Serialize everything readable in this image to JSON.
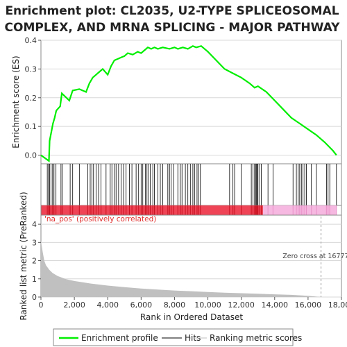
{
  "chart_data": {
    "type": "line",
    "title_lines": [
      "Enrichment plot: CL2035, U2-TYPE SPLICEOSOMAL",
      "COMPLEX, AND MRNA SPLICING - MAJOR PATHWAY"
    ],
    "es_panel": {
      "ylabel": "Enrichment score (ES)",
      "ylim": [
        -0.03,
        0.4
      ],
      "yticks": [
        "0.0",
        "0.1",
        "0.2",
        "0.3",
        "0.4"
      ],
      "ytick_values": [
        0.0,
        0.1,
        0.2,
        0.3,
        0.4
      ],
      "series": [
        {
          "name": "Enrichment profile",
          "color": "#00ee00",
          "x": [
            0,
            480,
            520,
            620,
            720,
            820,
            920,
            1150,
            1250,
            1700,
            1900,
            2300,
            2700,
            2900,
            3100,
            3300,
            3500,
            3700,
            4000,
            4200,
            4400,
            4600,
            4800,
            5000,
            5200,
            5500,
            5800,
            6000,
            6200,
            6400,
            6600,
            6800,
            7000,
            7300,
            7700,
            8000,
            8200,
            8500,
            8800,
            9100,
            9300,
            9600,
            10000,
            10500,
            11000,
            11500,
            12000,
            12500,
            12800,
            13000,
            13500,
            14000,
            14500,
            15000,
            15500,
            16000,
            16500,
            17000,
            17500,
            17700
          ],
          "y": [
            0.0,
            -0.02,
            0.05,
            0.08,
            0.11,
            0.13,
            0.155,
            0.17,
            0.215,
            0.19,
            0.225,
            0.23,
            0.22,
            0.25,
            0.27,
            0.28,
            0.29,
            0.3,
            0.28,
            0.31,
            0.33,
            0.335,
            0.34,
            0.345,
            0.355,
            0.35,
            0.36,
            0.355,
            0.365,
            0.375,
            0.37,
            0.375,
            0.37,
            0.375,
            0.37,
            0.375,
            0.37,
            0.375,
            0.37,
            0.38,
            0.375,
            0.38,
            0.36,
            0.33,
            0.3,
            0.285,
            0.27,
            0.25,
            0.235,
            0.24,
            0.22,
            0.19,
            0.16,
            0.13,
            0.11,
            0.09,
            0.07,
            0.045,
            0.015,
            0.0
          ]
        }
      ]
    },
    "hits": {
      "name": "Hits",
      "x": [
        380,
        450,
        520,
        600,
        700,
        780,
        900,
        1200,
        1280,
        1750,
        1900,
        2300,
        2800,
        2950,
        3050,
        3150,
        3300,
        3450,
        3600,
        3900,
        4150,
        4250,
        4400,
        4500,
        4650,
        4800,
        4950,
        5100,
        5300,
        5450,
        5700,
        5850,
        6000,
        6100,
        6250,
        6350,
        6450,
        6550,
        6700,
        6800,
        7000,
        7150,
        7300,
        7600,
        7700,
        7800,
        7950,
        8200,
        8350,
        8450,
        8650,
        8800,
        8950,
        9100,
        9200,
        9350,
        9450,
        9550,
        11300,
        11500,
        11600,
        12000,
        12600,
        12700,
        12800,
        12850,
        12900,
        12950,
        13000,
        13100,
        13200,
        13600,
        13900,
        15100,
        15300,
        15400,
        15500,
        15600,
        15700,
        15800,
        15900,
        16200,
        16500,
        17100,
        17200,
        17300,
        17700
      ]
    },
    "ranking_panel": {
      "ylabel": "Ranked list metric (PreRanked)",
      "ylim": [
        0,
        4.5
      ],
      "yticks": [
        "0",
        "1",
        "2",
        "3",
        "4"
      ],
      "ytick_values": [
        0,
        1,
        2,
        3,
        4
      ],
      "series": [
        {
          "name": "Ranking metric scores",
          "color": "#c0c0c0",
          "x": [
            0,
            100,
            200,
            300,
            500,
            700,
            1000,
            1500,
            2000,
            3000,
            4000,
            5000,
            6000,
            7000,
            8000,
            9000,
            10000,
            11000,
            12000,
            13000,
            14000,
            15000,
            16000,
            16777,
            17000,
            17700
          ],
          "y": [
            3.1,
            2.5,
            2.0,
            1.75,
            1.5,
            1.32,
            1.15,
            0.98,
            0.88,
            0.74,
            0.63,
            0.54,
            0.47,
            0.41,
            0.36,
            0.32,
            0.28,
            0.24,
            0.21,
            0.18,
            0.15,
            0.12,
            0.07,
            0.0,
            -0.02,
            -0.03
          ]
        }
      ]
    },
    "xaxis": {
      "xlabel": "Rank in Ordered Dataset",
      "xlim": [
        0,
        18000
      ],
      "xticks": [
        "0",
        "2,000",
        "4,000",
        "6,000",
        "8,000",
        "10,000",
        "12,000",
        "14,000",
        "16,000",
        "18,000"
      ],
      "xtick_values": [
        0,
        2000,
        4000,
        6000,
        8000,
        10000,
        12000,
        14000,
        16000,
        18000
      ]
    },
    "n_genes": 17700,
    "zero_cross": 16777,
    "annotations": {
      "positive_label": "'na_pos' (positively correlated)",
      "zero_cross_label": "Zero cross at 16777"
    },
    "legend": {
      "placement": "bottom",
      "items": [
        {
          "label": "Enrichment profile",
          "color": "#00ee00"
        },
        {
          "label": "Hits",
          "color": "#000000"
        },
        {
          "label": "Ranking metric scores",
          "color": "#c0c0c0"
        }
      ]
    },
    "colors": {
      "heat_pos": "#ee4455",
      "heat_neg": "#f6b8e0",
      "grid": "#d8d8d8",
      "frame": "#888888"
    },
    "grid": true
  }
}
